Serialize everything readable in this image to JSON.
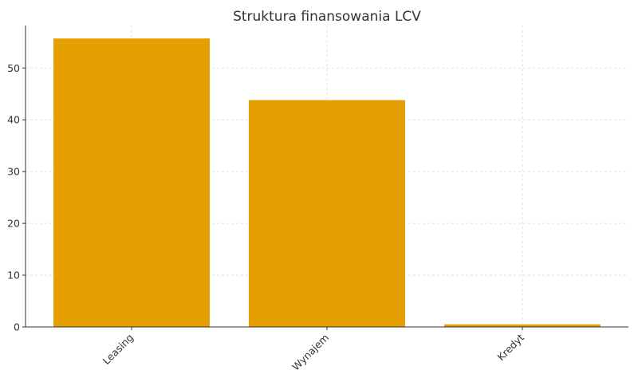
{
  "chart_data": {
    "type": "bar",
    "title": "Struktura finansowania LCV",
    "xlabel": "",
    "ylabel": "",
    "categories": [
      "Leasing",
      "Wynajem",
      "Kredyt"
    ],
    "values": [
      55.7,
      43.8,
      0.5
    ],
    "ylim": [
      0,
      58.2
    ],
    "yticks": [
      0,
      10,
      20,
      30,
      40,
      50
    ],
    "grid": true,
    "bar_color": "#E69F00",
    "grid_color": "#d9d9d9",
    "axis_color": "#333333"
  }
}
